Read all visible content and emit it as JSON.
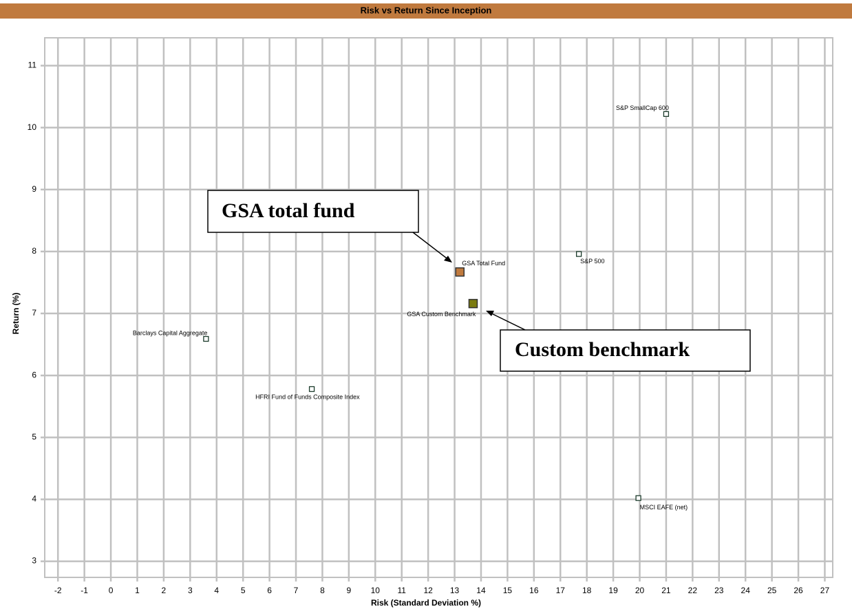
{
  "chart_data": {
    "type": "scatter",
    "title": "Risk vs Return Since Inception",
    "x_label": "Risk (Standard Deviation %)",
    "y_label": "Return (%)",
    "xlim": [
      -2.5,
      27.3
    ],
    "ylim": [
      2.74,
      11.45
    ],
    "xticks": [
      -2,
      -1,
      0,
      1,
      2,
      3,
      4,
      5,
      6,
      7,
      8,
      9,
      10,
      11,
      12,
      13,
      14,
      15,
      16,
      17,
      18,
      19,
      20,
      21,
      22,
      23,
      24,
      25,
      26,
      27
    ],
    "yticks": [
      3,
      4,
      5,
      6,
      7,
      8,
      9,
      10,
      11
    ],
    "grid": true,
    "series": [
      {
        "name": "S&P SmallCap 600",
        "color": "#ffffff",
        "marker": "small",
        "x": [
          21.0
        ],
        "values": [
          10.22
        ]
      },
      {
        "name": "S&P 500",
        "color": "#ffffff",
        "marker": "small",
        "x": [
          17.7
        ],
        "values": [
          7.96
        ]
      },
      {
        "name": "GSA Total Fund",
        "color": "#c07a3e",
        "marker": "large",
        "x": [
          13.2
        ],
        "values": [
          7.67
        ]
      },
      {
        "name": "GSA Custom Benchmark",
        "color": "#7b7b10",
        "marker": "large",
        "x": [
          13.7
        ],
        "values": [
          7.16
        ]
      },
      {
        "name": "Barclays Capital Aggregate",
        "color": "#ffffff",
        "marker": "small",
        "x": [
          3.6
        ],
        "values": [
          6.59
        ]
      },
      {
        "name": "HFRI Fund of Funds Composite Index",
        "color": "#ffffff",
        "marker": "small",
        "x": [
          7.6
        ],
        "values": [
          5.78
        ]
      },
      {
        "name": "MSCI EAFE (net)",
        "color": "#ffffff",
        "marker": "small",
        "x": [
          19.95
        ],
        "values": [
          4.02
        ]
      }
    ],
    "annotations": [
      "GSA total fund",
      "Custom benchmark"
    ]
  }
}
